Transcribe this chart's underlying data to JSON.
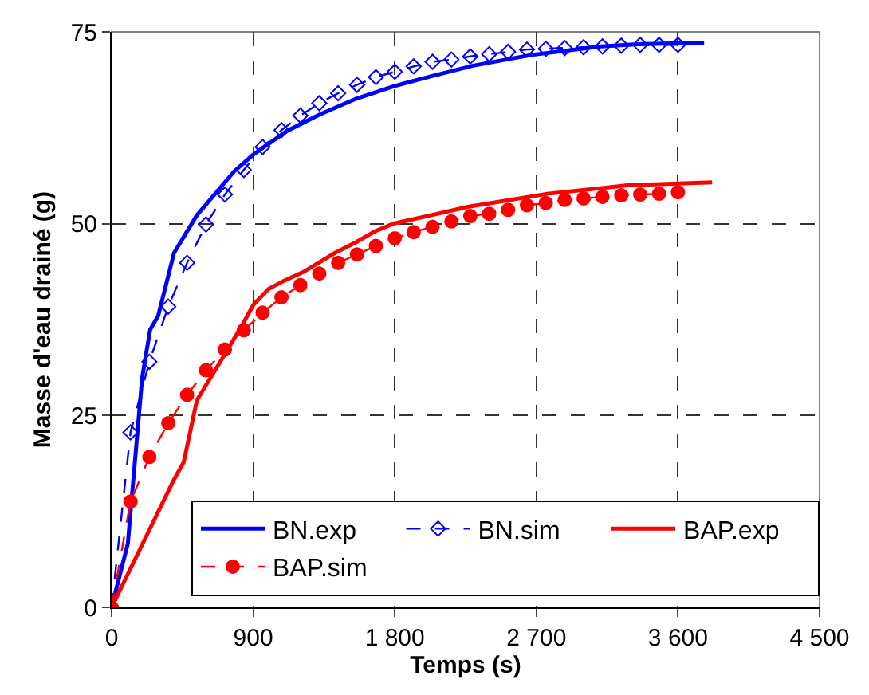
{
  "chart_data": {
    "type": "line",
    "xlabel": "Temps (s)",
    "ylabel": "Masse d'eau drainé (g)",
    "xlim": [
      0,
      4500
    ],
    "ylim": [
      0,
      75
    ],
    "xticks": [
      0,
      900,
      {
        "value": 1800,
        "label": "1 800"
      },
      {
        "value": 2700,
        "label": "2 700"
      },
      {
        "value": 3600,
        "label": "3 600"
      },
      {
        "value": 4500,
        "label": "4 500"
      }
    ],
    "yticks": [
      0,
      25,
      50,
      75
    ],
    "grid": true,
    "legend": "bottom right",
    "series": [
      {
        "name": "BN.exp",
        "color": "#0000ff",
        "line_style": "solid",
        "marker": "none",
        "x": [
          0,
          103,
          194,
          245,
          296,
          397,
          542,
          778,
          900,
          1116,
          1319,
          1555,
          1791,
          2028,
          2297,
          2669,
          3108,
          3345,
          3766
        ],
        "values": [
          0,
          8.3,
          29.9,
          36.2,
          38.0,
          46.2,
          51.1,
          56.8,
          59.0,
          62.1,
          64.2,
          66.3,
          67.9,
          69.2,
          70.6,
          72.0,
          73.1,
          73.4,
          73.6
        ]
      },
      {
        "name": "BN.sim",
        "color": "#0000ff",
        "line_style": "dashed",
        "marker": "diamond",
        "x": [
          0,
          120,
          240,
          360,
          480,
          600,
          720,
          840,
          960,
          1080,
          1200,
          1320,
          1440,
          1560,
          1680,
          1800,
          1920,
          2040,
          2160,
          2280,
          2400,
          2520,
          2640,
          2760,
          2880,
          3000,
          3120,
          3240,
          3360,
          3480,
          3600
        ],
        "values": [
          0,
          22.8,
          32.0,
          39.2,
          44.9,
          49.9,
          53.8,
          57.0,
          60.0,
          62.2,
          64.1,
          65.7,
          67.0,
          68.1,
          69.1,
          69.8,
          70.5,
          71.1,
          71.4,
          71.8,
          72.1,
          72.4,
          72.7,
          72.8,
          72.9,
          73.0,
          73.1,
          73.2,
          73.3,
          73.3,
          73.3
        ]
      },
      {
        "name": "BAP.exp",
        "color": "#ff0000",
        "line_style": "solid",
        "marker": "none",
        "x": [
          0,
          390,
          458,
          542,
          711,
          836,
          900,
          998,
          1099,
          1218,
          1420,
          1555,
          1673,
          1791,
          2028,
          2264,
          2770,
          3277,
          3817
        ],
        "values": [
          0,
          16.4,
          18.9,
          27.0,
          32.7,
          37.0,
          39.4,
          41.5,
          42.6,
          43.7,
          46.2,
          47.6,
          49.0,
          50.0,
          51.1,
          52.2,
          53.9,
          55.0,
          55.4
        ]
      },
      {
        "name": "BAP.sim",
        "color": "#ff0000",
        "line_style": "dashed",
        "marker": "circle",
        "x": [
          0,
          120,
          240,
          360,
          480,
          600,
          720,
          840,
          960,
          1080,
          1200,
          1320,
          1440,
          1560,
          1680,
          1800,
          1920,
          2040,
          2160,
          2280,
          2400,
          2520,
          2640,
          2760,
          2880,
          3000,
          3120,
          3240,
          3360,
          3480,
          3600
        ],
        "values": [
          0,
          13.8,
          19.6,
          24.0,
          27.7,
          30.9,
          33.6,
          36.1,
          38.4,
          40.4,
          42.0,
          43.5,
          44.9,
          46.0,
          47.1,
          48.1,
          48.9,
          49.6,
          50.3,
          51.0,
          51.3,
          51.8,
          52.4,
          52.7,
          53.1,
          53.3,
          53.5,
          53.7,
          53.8,
          53.9,
          54.1
        ]
      }
    ]
  }
}
